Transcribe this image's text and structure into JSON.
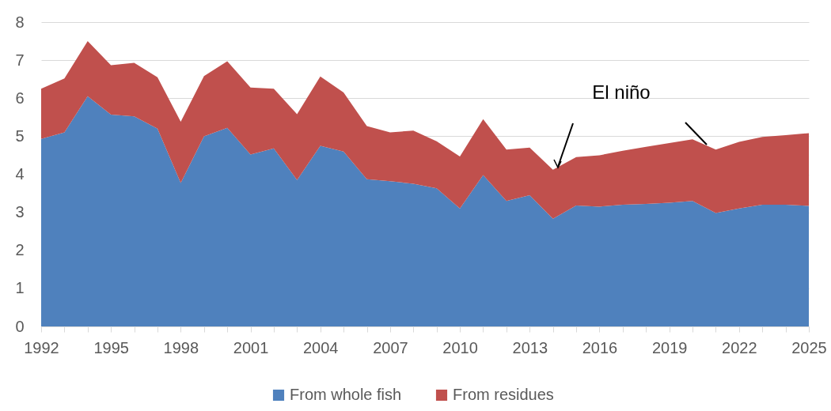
{
  "chart_data": {
    "type": "area",
    "stacked": true,
    "x": [
      1992,
      1993,
      1994,
      1995,
      1996,
      1997,
      1998,
      1999,
      2000,
      2001,
      2002,
      2003,
      2004,
      2005,
      2006,
      2007,
      2008,
      2009,
      2010,
      2011,
      2012,
      2013,
      2014,
      2015,
      2016,
      2017,
      2018,
      2019,
      2020,
      2021,
      2022,
      2023,
      2024,
      2025
    ],
    "series": [
      {
        "name": "From whole fish",
        "color": "#4f81bd",
        "values": [
          4.93,
          5.1,
          6.05,
          5.57,
          5.52,
          5.2,
          3.77,
          5.0,
          5.22,
          4.52,
          4.68,
          3.85,
          4.75,
          4.6,
          3.87,
          3.82,
          3.75,
          3.63,
          3.1,
          3.98,
          3.3,
          3.45,
          2.83,
          3.18,
          3.15,
          3.2,
          3.22,
          3.25,
          3.3,
          2.98,
          3.1,
          3.2,
          3.2,
          3.17
        ]
      },
      {
        "name": "From residues",
        "color": "#c0504d",
        "values": [
          1.32,
          1.42,
          1.45,
          1.3,
          1.41,
          1.35,
          1.61,
          1.58,
          1.75,
          1.76,
          1.57,
          1.73,
          1.82,
          1.55,
          1.4,
          1.28,
          1.4,
          1.24,
          1.37,
          1.47,
          1.35,
          1.25,
          1.29,
          1.27,
          1.35,
          1.42,
          1.5,
          1.57,
          1.62,
          1.67,
          1.75,
          1.78,
          1.83,
          1.91
        ]
      }
    ],
    "xlim": [
      1992,
      2025
    ],
    "xticks": [
      1992,
      {
        "value": 1993,
        "label": null
      },
      {
        "value": 1994,
        "label": null
      },
      1995,
      {
        "value": 1996,
        "label": null
      },
      {
        "value": 1997,
        "label": null
      },
      1998,
      {
        "value": 1999,
        "label": null
      },
      {
        "value": 2000,
        "label": null
      },
      2001,
      {
        "value": 2002,
        "label": null
      },
      {
        "value": 2003,
        "label": null
      },
      2004,
      {
        "value": 2005,
        "label": null
      },
      {
        "value": 2006,
        "label": null
      },
      2007,
      {
        "value": 2008,
        "label": null
      },
      {
        "value": 2009,
        "label": null
      },
      2010,
      {
        "value": 2011,
        "label": null
      },
      {
        "value": 2012,
        "label": null
      },
      2013,
      {
        "value": 2014,
        "label": null
      },
      {
        "value": 2015,
        "label": null
      },
      2016,
      {
        "value": 2017,
        "label": null
      },
      {
        "value": 2018,
        "label": null
      },
      2019,
      {
        "value": 2020,
        "label": null
      },
      {
        "value": 2021,
        "label": null
      },
      2022,
      {
        "value": 2023,
        "label": null
      },
      {
        "value": 2024,
        "label": null
      },
      2025
    ],
    "ylim": [
      0,
      8
    ],
    "yticks": [
      0,
      1,
      2,
      3,
      4,
      5,
      6,
      7,
      8
    ],
    "grid": "y",
    "legend": "bottom",
    "annotations": [
      "El niño"
    ]
  }
}
